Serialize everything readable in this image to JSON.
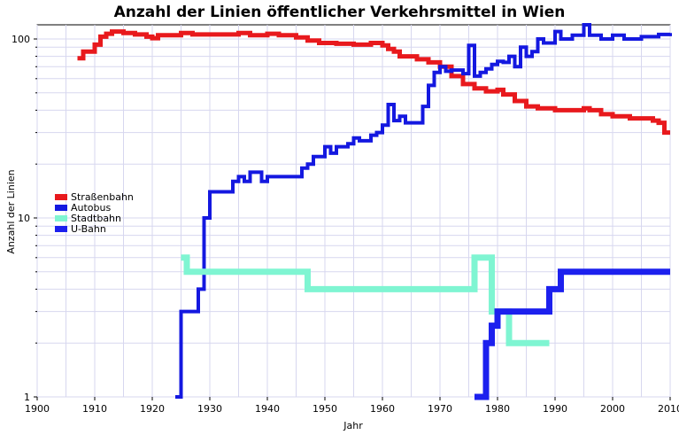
{
  "chart_data": {
    "type": "line",
    "title": "Anzahl der Linien öffentlicher Verkehrsmittel in Wien",
    "xlabel": "Jahr",
    "ylabel": "Anzahl der Linien",
    "xlim": [
      1900,
      2010
    ],
    "ylim": [
      1,
      120
    ],
    "y_scale": "log",
    "x_ticks": [
      1900,
      1910,
      1920,
      1930,
      1940,
      1950,
      1960,
      1970,
      1980,
      1990,
      2000,
      2010
    ],
    "y_ticks": [
      1,
      10,
      100
    ],
    "grid": true,
    "legend_position": "left",
    "series": [
      {
        "name": "Straßenbahn",
        "color": "#e8191d",
        "line_width": 5,
        "x": [
          1907,
          1908,
          1910,
          1911,
          1912,
          1913,
          1915,
          1917,
          1919,
          1920,
          1921,
          1925,
          1927,
          1935,
          1937,
          1940,
          1942,
          1945,
          1947,
          1949,
          1952,
          1955,
          1958,
          1960,
          1961,
          1962,
          1963,
          1966,
          1968,
          1970,
          1972,
          1974,
          1976,
          1978,
          1980,
          1981,
          1983,
          1985,
          1987,
          1990,
          1995,
          1996,
          1998,
          2000,
          2003,
          2005,
          2007,
          2008,
          2009,
          2010
        ],
        "y": [
          78,
          85,
          93,
          103,
          107,
          110,
          108,
          106,
          103,
          101,
          105,
          108,
          106,
          108,
          105,
          107,
          105,
          102,
          98,
          95,
          94,
          93,
          95,
          92,
          88,
          85,
          80,
          77,
          74,
          70,
          62,
          56,
          53,
          51,
          52,
          49,
          45,
          42,
          41,
          40,
          41,
          40,
          38,
          37,
          36,
          36,
          35,
          34,
          30,
          30
        ]
      },
      {
        "name": "Autobus",
        "color": "#1418e0",
        "line_width": 4,
        "x": [
          1924,
          1925,
          1928,
          1929,
          1930,
          1931,
          1934,
          1935,
          1936,
          1937,
          1938,
          1939,
          1940,
          1942,
          1946,
          1947,
          1948,
          1950,
          1951,
          1952,
          1954,
          1955,
          1956,
          1958,
          1959,
          1960,
          1961,
          1962,
          1963,
          1964,
          1966,
          1967,
          1968,
          1969,
          1970,
          1971,
          1972,
          1974,
          1975,
          1976,
          1977,
          1978,
          1979,
          1980,
          1981,
          1982,
          1983,
          1984,
          1985,
          1986,
          1987,
          1988,
          1990,
          1991,
          1993,
          1995,
          1996,
          1998,
          2000,
          2002,
          2005,
          2008,
          2010
        ],
        "y": [
          1,
          3,
          4,
          10,
          14,
          14,
          16,
          17,
          16,
          18,
          18,
          16,
          17,
          17,
          19,
          20,
          22,
          25,
          23,
          25,
          26,
          28,
          27,
          29,
          30,
          33,
          43,
          35,
          37,
          34,
          34,
          42,
          55,
          65,
          70,
          66,
          67,
          64,
          92,
          62,
          65,
          68,
          72,
          75,
          74,
          80,
          70,
          90,
          80,
          85,
          100,
          95,
          110,
          100,
          105,
          120,
          105,
          100,
          105,
          100,
          103,
          106,
          108
        ]
      },
      {
        "name": "Stadtbahn",
        "color": "#7ff5d2",
        "line_width": 7,
        "x": [
          1925,
          1926,
          1928,
          1946,
          1947,
          1975,
          1976,
          1978,
          1979,
          1982,
          1983,
          1988,
          1989
        ],
        "y": [
          6,
          5,
          5,
          5,
          4,
          4,
          6,
          6,
          3,
          2,
          2,
          2,
          2
        ]
      },
      {
        "name": "U-Bahn",
        "color": "#1c20ee",
        "line_width": 7,
        "x": [
          1976,
          1978,
          1979,
          1980,
          1986,
          1989,
          1991,
          2010
        ],
        "y": [
          1,
          2,
          2.5,
          3,
          3,
          4,
          5,
          5
        ]
      }
    ]
  }
}
